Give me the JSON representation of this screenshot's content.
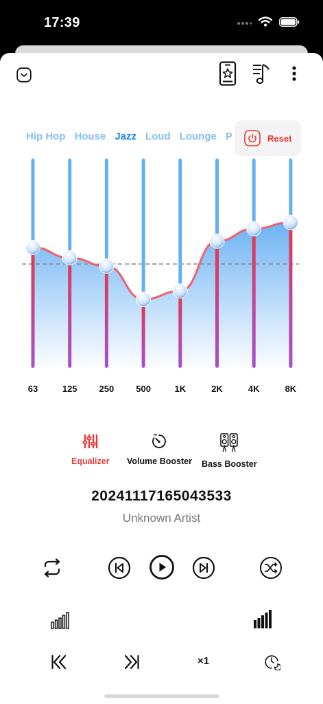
{
  "status_bar": {
    "time": "17:39"
  },
  "presets": {
    "items": [
      "Hip Hop",
      "House",
      "Jazz",
      "Loud",
      "Lounge",
      "P"
    ],
    "active_index": 2,
    "reset_label": "Reset"
  },
  "equalizer": {
    "bands": [
      "63",
      "125",
      "250",
      "500",
      "1K",
      "2K",
      "4K",
      "8K"
    ],
    "levels": [
      0.58,
      0.53,
      0.49,
      0.33,
      0.37,
      0.61,
      0.67,
      0.7
    ],
    "colors": {
      "slider_top": "#64b0f4",
      "slider_bottom_start": "#e53946",
      "slider_bottom_end": "#a44fd6",
      "curve": "#f0606c",
      "fill": "#66aef2"
    }
  },
  "tabs": [
    {
      "label": "Equalizer",
      "icon": "equalizer-icon",
      "active": true
    },
    {
      "label": "Volume Booster",
      "icon": "volume-booster-icon",
      "active": false
    },
    {
      "label": "Bass Booster",
      "icon": "bass-booster-icon",
      "active": false
    }
  ],
  "track": {
    "title": "20241117165043533",
    "artist": "Unknown Artist"
  },
  "controls": {
    "speed_label": "×1"
  },
  "colors": {
    "accent": "#e53935",
    "active_preset": "#1e88e5",
    "inactive_preset": "#86bff3"
  }
}
